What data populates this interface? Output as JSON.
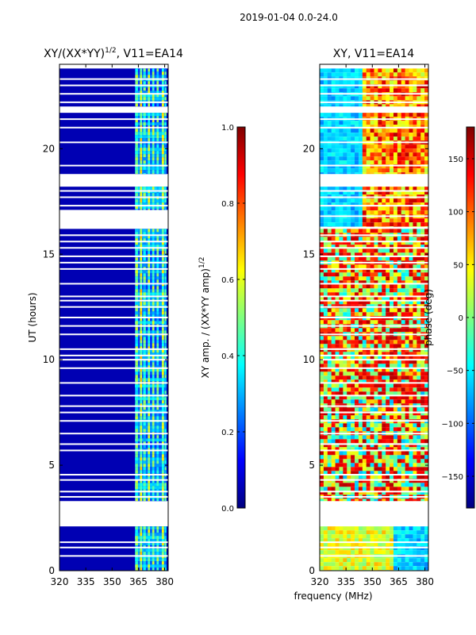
{
  "chart_data": {
    "suptitle": "2019-01-04 0.0-24.0",
    "shared_xlabel": "frequency (MHz)",
    "panels": [
      {
        "type": "heatmap",
        "title": "XY/(XX*YY)",
        "title_exponent": "1/2",
        "title_suffix": ", V11=EA14",
        "ylabel": "UT (hours)",
        "xlim": [
          320,
          382
        ],
        "ylim": [
          0,
          24
        ],
        "xticks": [
          "320",
          "335",
          "350",
          "365",
          "380"
        ],
        "xtick_values": [
          320,
          335,
          350,
          365,
          380
        ],
        "yticks": [
          "0",
          "5",
          "10",
          "15",
          "20"
        ],
        "ytick_values": [
          0,
          5,
          10,
          15,
          20
        ],
        "colorbar": {
          "label": "XY amp. / (XX*YY amp)",
          "label_exponent": "1/2",
          "range": [
            0.0,
            1.0
          ],
          "ticks": [
            "0.0",
            "0.2",
            "0.4",
            "0.6",
            "0.8",
            "1.0"
          ],
          "tick_values": [
            0.0,
            0.2,
            0.4,
            0.6,
            0.8,
            1.0
          ],
          "colormap": "jet"
        },
        "bright_band_mhz": [
          363,
          381
        ],
        "background_value": 0.05,
        "data_rows_ut": [
          [
            0,
            2.1
          ],
          [
            3.3,
            16.2
          ],
          [
            17.1,
            18.2
          ],
          [
            18.8,
            21.7
          ],
          [
            22.0,
            23.8
          ]
        ],
        "flagged_lines_ut": [
          0.7,
          1.1,
          1.35,
          3.5,
          3.75,
          4.3,
          4.55,
          5.7,
          6.0,
          6.5,
          7.1,
          7.5,
          7.8,
          8.3,
          8.9,
          9.6,
          10.0,
          10.2,
          10.5,
          11.2,
          11.6,
          12.0,
          12.5,
          12.8,
          13.0,
          13.6,
          14.3,
          14.6,
          14.9,
          15.3,
          15.6,
          15.9,
          16.8,
          17.3,
          17.7,
          18.0,
          19.2,
          20.3,
          21.0,
          21.4,
          22.2,
          22.6,
          23.0,
          23.3
        ],
        "band_stripes_mhz": [
          {
            "f": 364.0,
            "w": 1.5,
            "v": 0.45
          },
          {
            "f": 366.5,
            "w": 1.2,
            "v": 0.55
          },
          {
            "f": 368.5,
            "w": 1.5,
            "v": 0.4
          },
          {
            "f": 371.0,
            "w": 1.2,
            "v": 0.5
          },
          {
            "f": 373.5,
            "w": 1.2,
            "v": 0.45
          },
          {
            "f": 376.0,
            "w": 1.2,
            "v": 0.42
          },
          {
            "f": 379.0,
            "w": 1.3,
            "v": 0.52
          },
          {
            "f": 380.5,
            "w": 1.0,
            "v": 0.38
          }
        ]
      },
      {
        "type": "heatmap",
        "title": "XY, V11=EA14",
        "ylabel": "",
        "xlim": [
          320,
          382
        ],
        "ylim": [
          0,
          24
        ],
        "xticks": [
          "320",
          "335",
          "350",
          "365",
          "380"
        ],
        "xtick_values": [
          320,
          335,
          350,
          365,
          380
        ],
        "yticks": [
          "0",
          "5",
          "10",
          "15",
          "20"
        ],
        "ytick_values": [
          0,
          5,
          10,
          15,
          20
        ],
        "colorbar": {
          "label": "phase (deg)",
          "range": [
            -180,
            180
          ],
          "ticks": [
            "−150",
            "−100",
            "−50",
            "0",
            "50",
            "100",
            "150"
          ],
          "tick_values": [
            -150,
            -100,
            -50,
            0,
            50,
            100,
            150
          ],
          "colormap": "jet"
        },
        "data_rows_ut": [
          [
            0,
            2.1
          ],
          [
            3.3,
            16.2
          ],
          [
            16.3,
            18.2
          ],
          [
            18.8,
            21.7
          ],
          [
            22.0,
            23.8
          ]
        ],
        "flagged_lines_ut": [
          0.7,
          1.1,
          1.35,
          3.5,
          3.75,
          4.3,
          4.55,
          5.7,
          6.0,
          6.5,
          7.1,
          7.5,
          7.8,
          8.3,
          8.9,
          9.6,
          10.0,
          10.2,
          10.5,
          11.2,
          11.6,
          12.0,
          12.5,
          12.8,
          13.0,
          13.6,
          14.3,
          14.6,
          14.9,
          15.3,
          15.6,
          15.9,
          16.8,
          17.3,
          17.7,
          18.0,
          19.2,
          20.3,
          21.0,
          21.4,
          22.2,
          22.6,
          23.0,
          23.3
        ]
      }
    ]
  }
}
